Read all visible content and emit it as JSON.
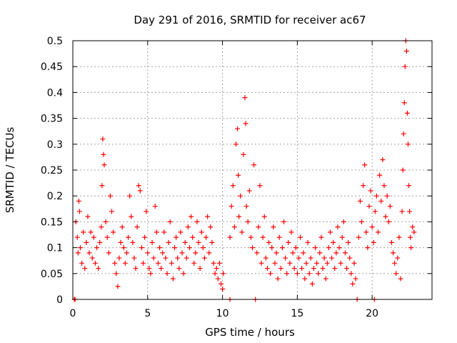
{
  "chart_data": {
    "type": "scatter",
    "title": "Day 291 of 2016, SRMTID for receiver ac67",
    "xlabel": "GPS time / hours",
    "ylabel": "SRMTID / TECUs",
    "xlim": [
      0,
      24
    ],
    "ylim": [
      0,
      0.5
    ],
    "grid": true,
    "marker": "plus",
    "colors": {
      "series": "#ff0000",
      "axes": "#000000",
      "grid": "#a0a0a0"
    },
    "x_ticks": [
      {
        "value": 0,
        "label": "0"
      },
      {
        "value": 5,
        "label": "5"
      },
      {
        "value": 10,
        "label": "10"
      },
      {
        "value": 15,
        "label": "15"
      },
      {
        "value": 20,
        "label": "20"
      }
    ],
    "y_ticks": [
      {
        "value": 0,
        "label": "0"
      },
      {
        "value": 0.05,
        "label": "0.05"
      },
      {
        "value": 0.1,
        "label": "0.1"
      },
      {
        "value": 0.15,
        "label": "0.15"
      },
      {
        "value": 0.2,
        "label": "0.2"
      },
      {
        "value": 0.25,
        "label": "0.25"
      },
      {
        "value": 0.3,
        "label": "0.3"
      },
      {
        "value": 0.35,
        "label": "0.35"
      },
      {
        "value": 0.4,
        "label": "0.4"
      },
      {
        "value": 0.45,
        "label": "0.45"
      },
      {
        "value": 0.5,
        "label": "0.5"
      }
    ],
    "series": [
      {
        "name": "SRMTID",
        "points": [
          [
            0.1,
            0.0
          ],
          [
            0.15,
            0.0
          ],
          [
            0.2,
            0.15
          ],
          [
            0.3,
            0.12
          ],
          [
            0.35,
            0.09
          ],
          [
            0.4,
            0.19
          ],
          [
            0.45,
            0.17
          ],
          [
            0.5,
            0.1
          ],
          [
            0.6,
            0.07
          ],
          [
            0.7,
            0.13
          ],
          [
            0.8,
            0.06
          ],
          [
            0.9,
            0.11
          ],
          [
            1.0,
            0.16
          ],
          [
            1.1,
            0.09
          ],
          [
            1.2,
            0.13
          ],
          [
            1.3,
            0.08
          ],
          [
            1.4,
            0.12
          ],
          [
            1.5,
            0.07
          ],
          [
            1.6,
            0.1
          ],
          [
            1.7,
            0.06
          ],
          [
            1.8,
            0.11
          ],
          [
            1.9,
            0.14
          ],
          [
            1.95,
            0.22
          ],
          [
            2.0,
            0.31
          ],
          [
            2.05,
            0.28
          ],
          [
            2.1,
            0.26
          ],
          [
            2.2,
            0.15
          ],
          [
            2.3,
            0.12
          ],
          [
            2.4,
            0.09
          ],
          [
            2.5,
            0.2
          ],
          [
            2.6,
            0.17
          ],
          [
            2.7,
            0.13
          ],
          [
            2.8,
            0.07
          ],
          [
            2.9,
            0.05
          ],
          [
            3.0,
            0.025
          ],
          [
            3.1,
            0.08
          ],
          [
            3.2,
            0.11
          ],
          [
            3.3,
            0.14
          ],
          [
            3.4,
            0.1
          ],
          [
            3.5,
            0.07
          ],
          [
            3.6,
            0.09
          ],
          [
            3.7,
            0.12
          ],
          [
            3.8,
            0.2
          ],
          [
            3.9,
            0.16
          ],
          [
            4.0,
            0.11
          ],
          [
            4.1,
            0.08
          ],
          [
            4.2,
            0.06
          ],
          [
            4.3,
            0.14
          ],
          [
            4.4,
            0.22
          ],
          [
            4.5,
            0.21
          ],
          [
            4.6,
            0.1
          ],
          [
            4.7,
            0.07
          ],
          [
            4.8,
            0.12
          ],
          [
            4.9,
            0.17
          ],
          [
            5.0,
            0.09
          ],
          [
            5.1,
            0.06
          ],
          [
            5.2,
            0.05
          ],
          [
            5.3,
            0.11
          ],
          [
            5.4,
            0.08
          ],
          [
            5.5,
            0.18
          ],
          [
            5.6,
            0.13
          ],
          [
            5.7,
            0.07
          ],
          [
            5.8,
            0.1
          ],
          [
            5.9,
            0.06
          ],
          [
            6.0,
            0.09
          ],
          [
            6.1,
            0.13
          ],
          [
            6.2,
            0.08
          ],
          [
            6.3,
            0.05
          ],
          [
            6.4,
            0.11
          ],
          [
            6.5,
            0.15
          ],
          [
            6.6,
            0.07
          ],
          [
            6.7,
            0.04
          ],
          [
            6.8,
            0.1
          ],
          [
            6.9,
            0.12
          ],
          [
            7.0,
            0.08
          ],
          [
            7.1,
            0.06
          ],
          [
            7.2,
            0.13
          ],
          [
            7.3,
            0.09
          ],
          [
            7.4,
            0.05
          ],
          [
            7.5,
            0.11
          ],
          [
            7.6,
            0.08
          ],
          [
            7.7,
            0.14
          ],
          [
            7.8,
            0.1
          ],
          [
            7.9,
            0.16
          ],
          [
            8.0,
            0.12
          ],
          [
            8.1,
            0.07
          ],
          [
            8.2,
            0.09
          ],
          [
            8.3,
            0.15
          ],
          [
            8.4,
            0.11
          ],
          [
            8.5,
            0.06
          ],
          [
            8.6,
            0.13
          ],
          [
            8.7,
            0.1
          ],
          [
            8.8,
            0.08
          ],
          [
            8.9,
            0.12
          ],
          [
            9.0,
            0.16
          ],
          [
            9.1,
            0.09
          ],
          [
            9.2,
            0.14
          ],
          [
            9.3,
            0.11
          ],
          [
            9.4,
            0.07
          ],
          [
            9.5,
            0.05
          ],
          [
            9.6,
            0.06
          ],
          [
            9.7,
            0.04
          ],
          [
            9.8,
            0.07
          ],
          [
            9.9,
            0.03
          ],
          [
            10.0,
            0.02
          ],
          [
            10.05,
            0.05
          ],
          [
            10.5,
            0.0
          ],
          [
            10.5,
            0.12
          ],
          [
            10.6,
            0.18
          ],
          [
            10.7,
            0.22
          ],
          [
            10.8,
            0.14
          ],
          [
            10.9,
            0.3
          ],
          [
            11.0,
            0.33
          ],
          [
            11.05,
            0.24
          ],
          [
            11.1,
            0.16
          ],
          [
            11.2,
            0.2
          ],
          [
            11.3,
            0.13
          ],
          [
            11.4,
            0.28
          ],
          [
            11.5,
            0.39
          ],
          [
            11.55,
            0.34
          ],
          [
            11.6,
            0.18
          ],
          [
            11.7,
            0.15
          ],
          [
            11.8,
            0.21
          ],
          [
            11.9,
            0.12
          ],
          [
            12.0,
            0.1
          ],
          [
            12.1,
            0.26
          ],
          [
            12.2,
            0.0
          ],
          [
            12.3,
            0.09
          ],
          [
            12.4,
            0.14
          ],
          [
            12.5,
            0.22
          ],
          [
            12.6,
            0.07
          ],
          [
            12.7,
            0.12
          ],
          [
            12.8,
            0.16
          ],
          [
            12.9,
            0.08
          ],
          [
            13.0,
            0.06
          ],
          [
            13.1,
            0.11
          ],
          [
            13.2,
            0.05
          ],
          [
            13.3,
            0.1
          ],
          [
            13.4,
            0.14
          ],
          [
            13.5,
            0.07
          ],
          [
            13.6,
            0.09
          ],
          [
            13.7,
            0.04
          ],
          [
            13.8,
            0.12
          ],
          [
            13.9,
            0.06
          ],
          [
            14.0,
            0.1
          ],
          [
            14.1,
            0.15
          ],
          [
            14.2,
            0.08
          ],
          [
            14.3,
            0.05
          ],
          [
            14.4,
            0.11
          ],
          [
            14.5,
            0.07
          ],
          [
            14.6,
            0.13
          ],
          [
            14.7,
            0.09
          ],
          [
            14.8,
            0.06
          ],
          [
            14.9,
            0.1
          ],
          [
            15.0,
            0.05
          ],
          [
            15.1,
            0.08
          ],
          [
            15.2,
            0.12
          ],
          [
            15.3,
            0.06
          ],
          [
            15.4,
            0.09
          ],
          [
            15.5,
            0.04
          ],
          [
            15.6,
            0.07
          ],
          [
            15.7,
            0.11
          ],
          [
            15.8,
            0.05
          ],
          [
            15.9,
            0.08
          ],
          [
            16.0,
            0.03
          ],
          [
            16.1,
            0.06
          ],
          [
            16.2,
            0.1
          ],
          [
            16.3,
            0.07
          ],
          [
            16.4,
            0.05
          ],
          [
            16.5,
            0.09
          ],
          [
            16.6,
            0.12
          ],
          [
            16.7,
            0.06
          ],
          [
            16.8,
            0.08
          ],
          [
            16.9,
            0.04
          ],
          [
            17.0,
            0.07
          ],
          [
            17.1,
            0.1
          ],
          [
            17.2,
            0.13
          ],
          [
            17.3,
            0.08
          ],
          [
            17.4,
            0.11
          ],
          [
            17.5,
            0.06
          ],
          [
            17.6,
            0.09
          ],
          [
            17.7,
            0.14
          ],
          [
            17.8,
            0.1
          ],
          [
            17.9,
            0.07
          ],
          [
            18.0,
            0.12
          ],
          [
            18.1,
            0.15
          ],
          [
            18.2,
            0.09
          ],
          [
            18.3,
            0.06
          ],
          [
            18.4,
            0.11
          ],
          [
            18.5,
            0.08
          ],
          [
            18.6,
            0.05
          ],
          [
            18.7,
            0.03
          ],
          [
            18.8,
            0.07
          ],
          [
            18.9,
            0.04
          ],
          [
            19.0,
            0.0
          ],
          [
            19.1,
            0.12
          ],
          [
            19.2,
            0.19
          ],
          [
            19.3,
            0.15
          ],
          [
            19.4,
            0.22
          ],
          [
            19.5,
            0.26
          ],
          [
            19.6,
            0.13
          ],
          [
            19.7,
            0.1
          ],
          [
            19.8,
            0.18
          ],
          [
            19.9,
            0.21
          ],
          [
            20.0,
            0.14
          ],
          [
            20.1,
            0.11
          ],
          [
            20.15,
            0.0
          ],
          [
            20.2,
            0.17
          ],
          [
            20.3,
            0.2
          ],
          [
            20.4,
            0.13
          ],
          [
            20.5,
            0.24
          ],
          [
            20.6,
            0.19
          ],
          [
            20.7,
            0.27
          ],
          [
            20.8,
            0.22
          ],
          [
            20.9,
            0.16
          ],
          [
            21.0,
            0.2
          ],
          [
            21.1,
            0.15
          ],
          [
            21.2,
            0.18
          ],
          [
            21.3,
            0.11
          ],
          [
            21.4,
            0.09
          ],
          [
            21.5,
            0.07
          ],
          [
            21.6,
            0.05
          ],
          [
            21.7,
            0.08
          ],
          [
            21.8,
            0.12
          ],
          [
            21.9,
            0.04
          ],
          [
            22.0,
            0.17
          ],
          [
            22.05,
            0.25
          ],
          [
            22.1,
            0.32
          ],
          [
            22.15,
            0.38
          ],
          [
            22.2,
            0.45
          ],
          [
            22.25,
            0.5
          ],
          [
            22.3,
            0.48
          ],
          [
            22.35,
            0.36
          ],
          [
            22.4,
            0.3
          ],
          [
            22.45,
            0.22
          ],
          [
            22.5,
            0.17
          ],
          [
            22.55,
            0.12
          ],
          [
            22.6,
            0.1
          ],
          [
            22.7,
            0.14
          ],
          [
            22.8,
            0.13
          ]
        ]
      }
    ]
  }
}
